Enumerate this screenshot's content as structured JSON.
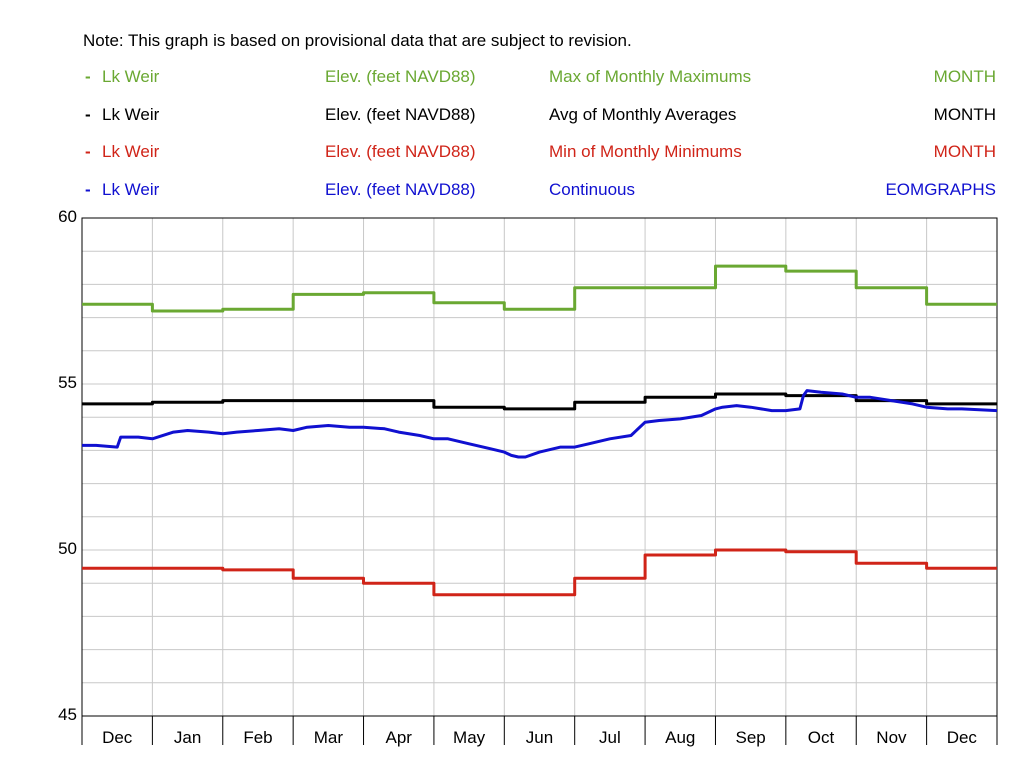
{
  "note": "Note: This graph is based on provisional data that are subject to revision.",
  "legend": [
    {
      "dash": "-",
      "site": "Lk Weir",
      "parameter": "Elev. (feet NAVD88)",
      "statistic": "Max of Monthly Maximums",
      "period": "MONTH",
      "color": "#6aa832"
    },
    {
      "dash": "-",
      "site": "Lk Weir",
      "parameter": "Elev. (feet NAVD88)",
      "statistic": "Avg of Monthly Averages",
      "period": "MONTH",
      "color": "#000000"
    },
    {
      "dash": "-",
      "site": "Lk Weir",
      "parameter": "Elev. (feet NAVD88)",
      "statistic": "Min of Monthly Minimums",
      "period": "MONTH",
      "color": "#d02418"
    },
    {
      "dash": "-",
      "site": "Lk Weir",
      "parameter": "Elev. (feet NAVD88)",
      "statistic": "Continuous",
      "period": "EOMGRAPHS",
      "color": "#1010d0"
    }
  ],
  "chart_data": {
    "type": "line",
    "categories": [
      "Dec",
      "Jan",
      "Feb",
      "Mar",
      "Apr",
      "May",
      "Jun",
      "Jul",
      "Aug",
      "Sep",
      "Oct",
      "Nov",
      "Dec"
    ],
    "ylim": [
      45,
      60
    ],
    "yticks": [
      "60",
      "55",
      "50",
      "45"
    ],
    "grid": true,
    "series": [
      {
        "name": "Max of Monthly Maximums",
        "color": "#6aa832",
        "step": true,
        "values": [
          57.4,
          57.2,
          57.25,
          57.7,
          57.75,
          57.45,
          57.25,
          57.9,
          57.9,
          58.55,
          58.4,
          57.9,
          57.4
        ]
      },
      {
        "name": "Avg of Monthly Averages",
        "color": "#000000",
        "step": true,
        "values": [
          54.4,
          54.45,
          54.5,
          54.5,
          54.5,
          54.3,
          54.25,
          54.45,
          54.6,
          54.7,
          54.65,
          54.5,
          54.4
        ]
      },
      {
        "name": "Min of Monthly Minimums",
        "color": "#d02418",
        "step": true,
        "values": [
          49.45,
          49.45,
          49.4,
          49.15,
          49.0,
          48.65,
          48.65,
          49.15,
          49.85,
          50.0,
          49.95,
          49.6,
          49.45
        ]
      },
      {
        "name": "Continuous",
        "color": "#1010d0",
        "step": false,
        "x": [
          0,
          0.2,
          0.5,
          0.55,
          0.8,
          1.0,
          1.3,
          1.5,
          1.8,
          2.0,
          2.2,
          2.5,
          2.8,
          3.0,
          3.2,
          3.5,
          3.8,
          4.0,
          4.3,
          4.5,
          4.8,
          5.0,
          5.2,
          5.5,
          5.8,
          6.0,
          6.1,
          6.2,
          6.3,
          6.5,
          6.8,
          7.0,
          7.2,
          7.5,
          7.8,
          8.0,
          8.2,
          8.5,
          8.8,
          9.0,
          9.1,
          9.3,
          9.5,
          9.8,
          10.0,
          10.2,
          10.25,
          10.3,
          10.5,
          10.8,
          11.0,
          11.2,
          11.5,
          11.8,
          12.0,
          12.3,
          12.5,
          13.0
        ],
        "values": [
          53.15,
          53.15,
          53.1,
          53.4,
          53.4,
          53.35,
          53.55,
          53.6,
          53.55,
          53.5,
          53.55,
          53.6,
          53.65,
          53.6,
          53.7,
          53.75,
          53.7,
          53.7,
          53.65,
          53.55,
          53.45,
          53.35,
          53.35,
          53.2,
          53.05,
          52.95,
          52.85,
          52.8,
          52.8,
          52.95,
          53.1,
          53.1,
          53.2,
          53.35,
          53.45,
          53.85,
          53.9,
          53.95,
          54.05,
          54.25,
          54.3,
          54.35,
          54.3,
          54.2,
          54.2,
          54.25,
          54.65,
          54.8,
          54.75,
          54.7,
          54.6,
          54.6,
          54.5,
          54.4,
          54.3,
          54.25,
          54.25,
          54.2
        ]
      }
    ]
  }
}
